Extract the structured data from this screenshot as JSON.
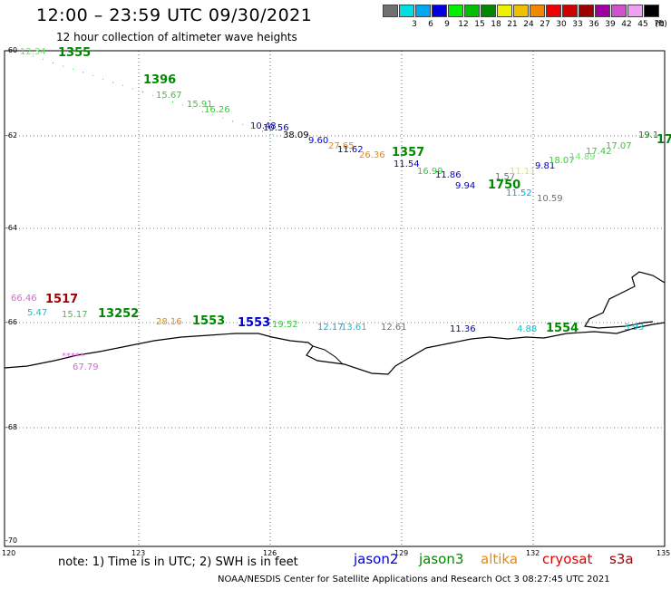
{
  "header": {
    "title": "12:00 – 23:59 UTC 09/30/2021",
    "subtitle": "12 hour collection of altimeter wave heights"
  },
  "legend": {
    "unit": "(ft)",
    "colors": [
      "#707070",
      "#00e0e0",
      "#00a8f0",
      "#0000e0",
      "#00f000",
      "#00c000",
      "#008800",
      "#f0f000",
      "#f0c000",
      "#f08800",
      "#f00000",
      "#d00000",
      "#a00000",
      "#a000a0",
      "#d050d0",
      "#f0a0f0",
      "#000000"
    ],
    "labels": [
      "",
      "3",
      "6",
      "9",
      "12",
      "15",
      "18",
      "21",
      "24",
      "27",
      "30",
      "33",
      "36",
      "39",
      "42",
      "45",
      "70"
    ]
  },
  "axes": {
    "y_labels": [
      "-60",
      "-62",
      "-64",
      "-66",
      "-68",
      "-70"
    ],
    "x_labels": [
      "120",
      "123",
      "126",
      "129",
      "132",
      "135"
    ]
  },
  "tracks": {
    "upper_labels": [
      {
        "t": "12.34",
        "c": "#66ee66"
      },
      {
        "t": "1355",
        "c": "#008800"
      },
      {
        "t": "1396",
        "c": "#008800"
      },
      {
        "t": "15.67",
        "c": "#33cc33"
      },
      {
        "t": "15.91",
        "c": "#33cc33"
      },
      {
        "t": "16.26",
        "c": "#33cc33"
      },
      {
        "t": "10.48",
        "c": "#0000cc"
      },
      {
        "t": "10.56",
        "c": "#0000cc"
      },
      {
        "t": "38.09",
        "c": "#000000"
      },
      {
        "t": "9.60",
        "c": "#0000cc"
      },
      {
        "t": "27.65",
        "c": "#ee8800"
      },
      {
        "t": "11.62",
        "c": "#0000cc"
      },
      {
        "t": "26.36",
        "c": "#ee8800"
      },
      {
        "t": "1357",
        "c": "#008800"
      },
      {
        "t": "11.54",
        "c": "#0000cc"
      },
      {
        "t": "16.99",
        "c": "#33cc33"
      },
      {
        "t": "11.86",
        "c": "#0000cc"
      },
      {
        "t": "9.94",
        "c": "#0000cc"
      },
      {
        "t": "1750",
        "c": "#008800"
      },
      {
        "t": "1.57",
        "c": "#707070"
      },
      {
        "t": "11.11",
        "c": "#eeee00"
      },
      {
        "t": "9.81",
        "c": "#0000cc"
      },
      {
        "t": "11.52",
        "c": "#00a8f0"
      },
      {
        "t": "10.59",
        "c": "#707070"
      },
      {
        "t": "18.07",
        "c": "#33cc33"
      },
      {
        "t": "14.89",
        "c": "#66ee66"
      },
      {
        "t": "17.42",
        "c": "#33cc33"
      },
      {
        "t": "17.07",
        "c": "#33cc33"
      },
      {
        "t": "19.1",
        "c": "#008800"
      },
      {
        "t": "17",
        "c": "#008800"
      }
    ],
    "lower_labels": [
      {
        "t": "66.46",
        "c": "#e060e0"
      },
      {
        "t": "1517",
        "c": "#a00000"
      },
      {
        "t": "5.47",
        "c": "#00c8d8"
      },
      {
        "t": "15.17",
        "c": "#33cc33"
      },
      {
        "t": "13252",
        "c": "#008800"
      },
      {
        "t": "28.16",
        "c": "#ee8800"
      },
      {
        "t": "1553",
        "c": "#008800"
      },
      {
        "t": "1553",
        "c": "#0000cc"
      },
      {
        "t": "19.52",
        "c": "#33cc33"
      },
      {
        "t": "12.17",
        "c": "#00a8f0"
      },
      {
        "t": "13.61",
        "c": "#00c8d8"
      },
      {
        "t": "12.61",
        "c": "#707070"
      },
      {
        "t": "11.36",
        "c": "#0000cc"
      },
      {
        "t": "4.88",
        "c": "#00c8d8"
      },
      {
        "t": "1554",
        "c": "#008800"
      },
      {
        "t": "3.93",
        "c": "#00c8d8"
      },
      {
        "t": "*****",
        "c": "#e060e0"
      },
      {
        "t": "67.79",
        "c": "#e060e0"
      }
    ]
  },
  "footer": {
    "note": "note: 1) Time is in UTC; 2) SWH is in feet",
    "satellites": [
      {
        "name": "jason2",
        "color": "#0000dd"
      },
      {
        "name": "jason3",
        "color": "#008800"
      },
      {
        "name": "altika",
        "color": "#ee8800"
      },
      {
        "name": "cryosat",
        "color": "#dd0000"
      },
      {
        "name": "s3a",
        "color": "#a00000"
      }
    ],
    "credit": "NOAA/NESDIS Center for Satellite Applications and Research    Oct  3 08:27:45 UTC 2021"
  }
}
